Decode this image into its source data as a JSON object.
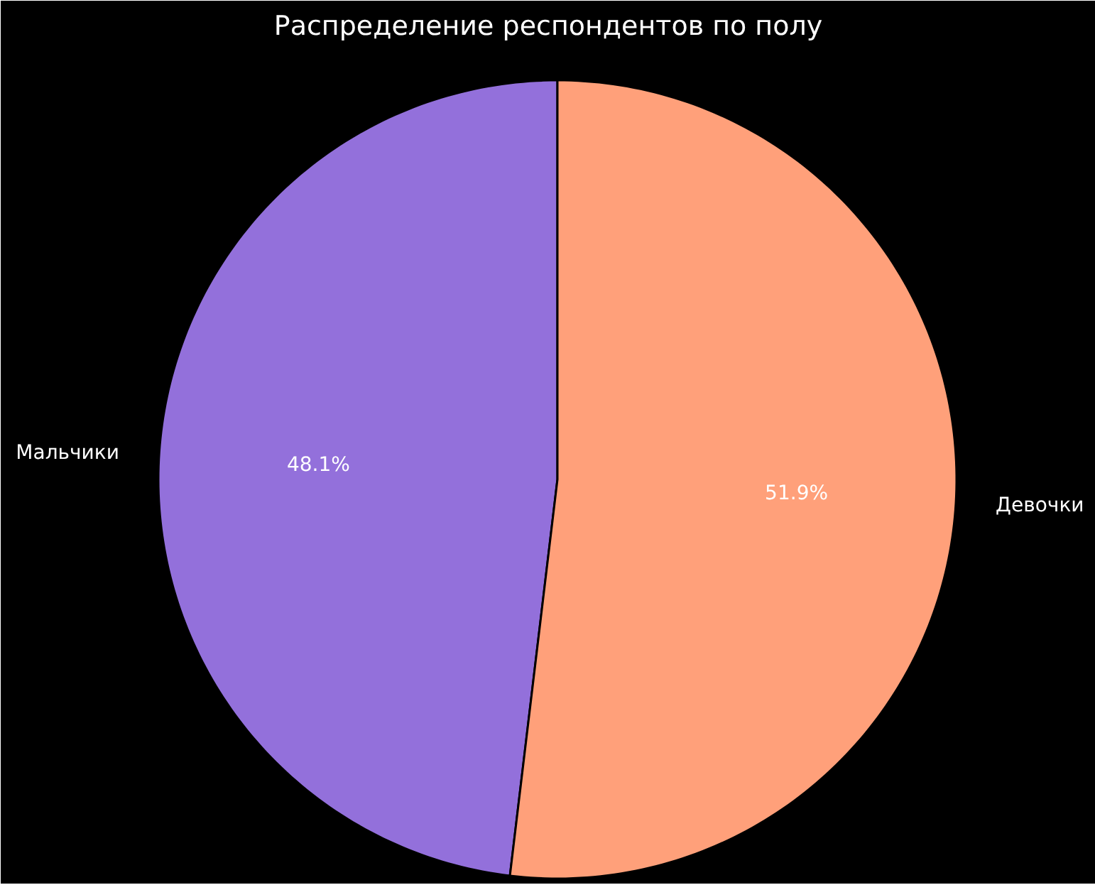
{
  "chart_data": {
    "type": "pie",
    "title": "Распределение респондентов по полу",
    "categories": [
      "Мальчики",
      "Девочки"
    ],
    "values": [
      48.1,
      51.9
    ],
    "colors": [
      "#9370db",
      "#ffa07a"
    ],
    "value_labels": [
      "48.1%",
      "51.9%"
    ]
  }
}
